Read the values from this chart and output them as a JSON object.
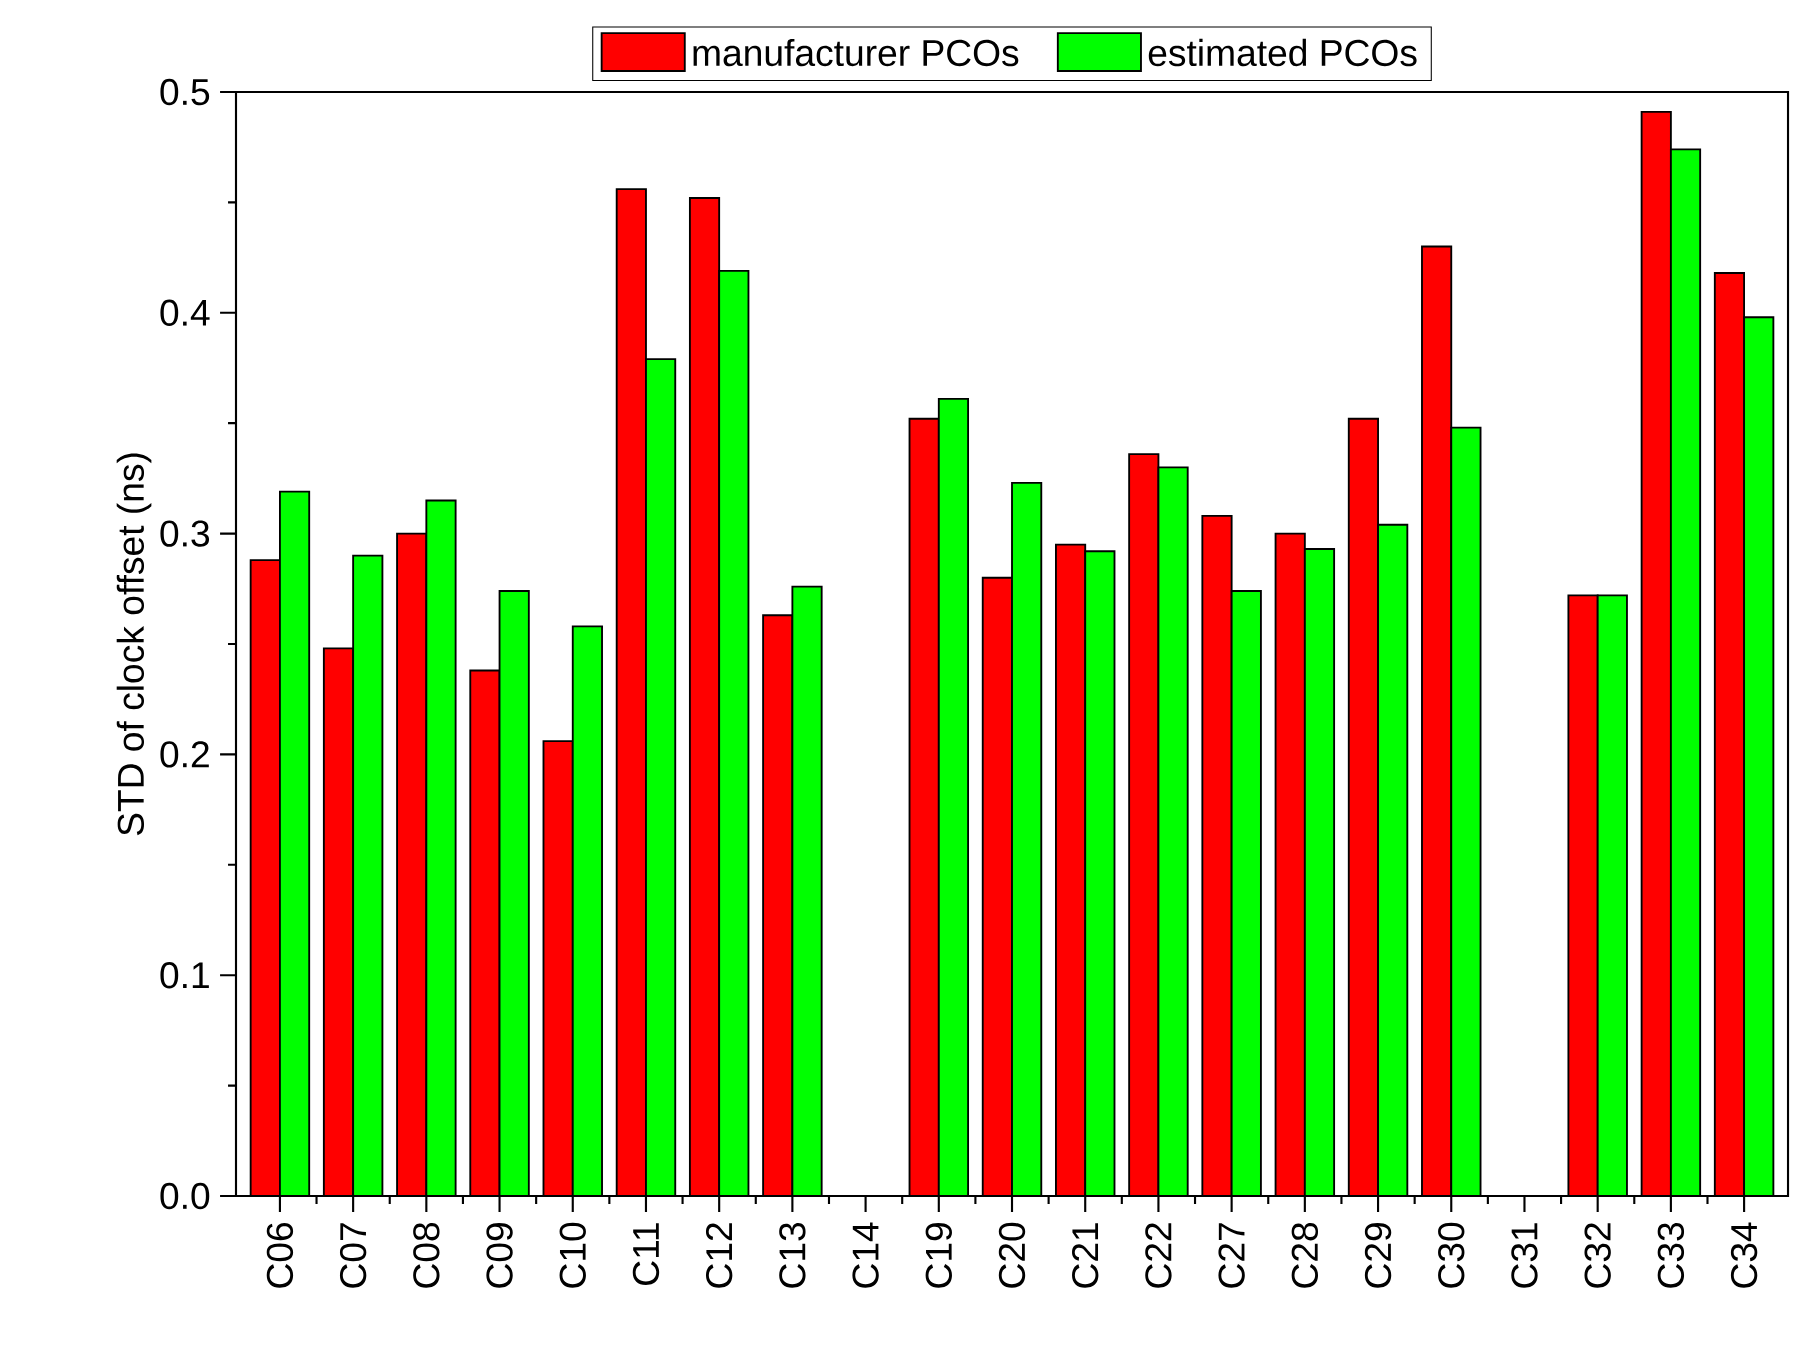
{
  "chart_data": {
    "type": "bar",
    "categories": [
      "C06",
      "C07",
      "C08",
      "C09",
      "C10",
      "C11",
      "C12",
      "C13",
      "C14",
      "C19",
      "C20",
      "C21",
      "C22",
      "C27",
      "C28",
      "C29",
      "C30",
      "C31",
      "C32",
      "C33",
      "C34"
    ],
    "ylabel": "STD of clock offset (ns)",
    "ylim": [
      0,
      0.5
    ],
    "yticks": [
      {
        "value": 0,
        "label": "0.0"
      },
      0.1,
      0.2,
      0.3,
      0.4,
      0.5
    ],
    "series": [
      {
        "name": "manufacturer PCOs",
        "color": "#ff0000",
        "values": [
          0.288,
          0.248,
          0.3,
          0.238,
          0.206,
          0.456,
          0.452,
          0.263,
          null,
          0.352,
          0.28,
          0.295,
          0.336,
          0.308,
          0.3,
          0.352,
          0.43,
          null,
          0.272,
          0.491,
          0.418
        ]
      },
      {
        "name": "estimated PCOs",
        "color": "#00ff00",
        "values": [
          0.319,
          0.29,
          0.315,
          0.274,
          0.258,
          0.379,
          0.419,
          0.276,
          null,
          0.361,
          0.323,
          0.292,
          0.33,
          0.274,
          0.293,
          0.304,
          0.348,
          null,
          0.272,
          0.474,
          0.398
        ]
      }
    ],
    "grid": false,
    "legend": "top"
  }
}
